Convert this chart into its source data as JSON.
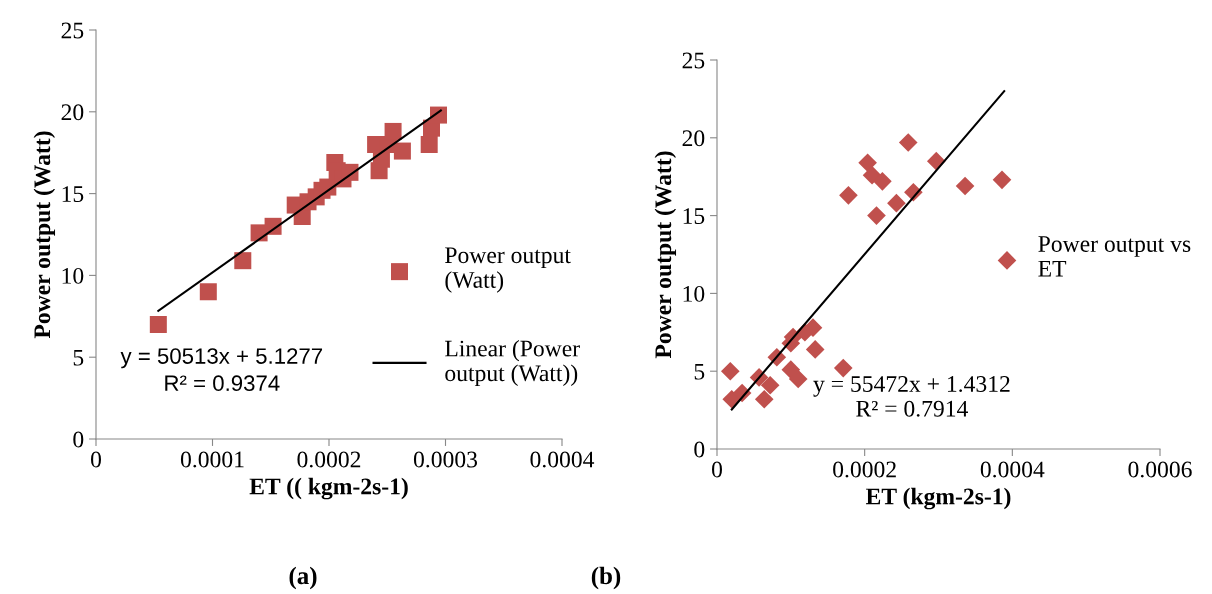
{
  "chart_data": [
    {
      "type": "scatter",
      "xlabel": "ET (( kgm-2s-1)",
      "ylabel": "Power output (Watt)",
      "xlim": [
        0,
        0.0004
      ],
      "ylim": [
        0,
        25
      ],
      "xticks": [
        0,
        0.0001,
        0.0002,
        0.0003,
        0.0004
      ],
      "yticks": [
        0,
        5,
        10,
        15,
        20,
        25
      ],
      "grid": false,
      "legend": "right",
      "annotations": [
        "y = 50513x + 5.1277\nR² = 0.9374",
        "(a)"
      ],
      "series": [
        {
          "name": "Power output (Watt)",
          "color": "#c0504d",
          "marker": "square",
          "x": [
            5.35e-05,
            9.64e-05,
            0.000126,
            0.00014,
            0.000152,
            0.000171,
            0.000177,
            0.000182,
            0.000189,
            0.000194,
            0.000199,
            0.000205,
            0.000207,
            0.000212,
            0.000218,
            0.00024,
            0.000243,
            0.000245,
            0.000251,
            0.000255,
            0.000263,
            0.000286,
            0.000288,
            0.000294
          ],
          "values": [
            7.0,
            9.0,
            10.9,
            12.6,
            13.0,
            14.3,
            13.6,
            14.5,
            14.8,
            15.2,
            15.4,
            16.9,
            16.4,
            15.9,
            16.3,
            18.0,
            16.4,
            17.1,
            18.0,
            18.8,
            17.6,
            18.0,
            19.0,
            19.8
          ]
        },
        {
          "type": "line",
          "name": "Linear (Power output (Watt))",
          "color": "#000000",
          "x": [
            5.35e-05,
            0.000296
          ],
          "values": [
            7.83,
            20.08
          ]
        }
      ]
    },
    {
      "type": "scatter",
      "xlabel": "ET (kgm-2s-1)",
      "ylabel": "Power output (Watt)",
      "xlim": [
        0,
        0.0006
      ],
      "ylim": [
        0,
        25
      ],
      "xticks": [
        0,
        0.0002,
        0.0004,
        0.0006
      ],
      "yticks": [
        0,
        5,
        10,
        15,
        20,
        25
      ],
      "grid": false,
      "legend": "right",
      "annotations": [
        "y = 55472x + 1.4312\nR² = 0.7914",
        "(b)"
      ],
      "series": [
        {
          "name": "Power output vs ET",
          "color": "#c0504d",
          "marker": "diamond",
          "x": [
            1.8e-05,
            2e-05,
            3.4e-05,
            5.7e-05,
            6.4e-05,
            7.2e-05,
            8.1e-05,
            0.0001,
            0.0001,
            0.00011,
            0.000103,
            0.000119,
            0.00013,
            0.000133,
            0.000171,
            0.000178,
            0.000204,
            0.00021,
            0.000224,
            0.000216,
            0.000243,
            0.000259,
            0.000266,
            0.000297,
            0.000336,
            0.000386
          ],
          "values": [
            5.0,
            3.2,
            3.6,
            4.6,
            3.2,
            4.1,
            5.9,
            5.1,
            6.8,
            4.5,
            7.2,
            7.5,
            7.8,
            6.4,
            5.2,
            16.3,
            18.4,
            17.6,
            17.2,
            15.0,
            15.8,
            19.7,
            16.5,
            18.5,
            16.9,
            17.3
          ]
        },
        {
          "type": "line",
          "color": "#000000",
          "x": [
            2e-05,
            0.000389
          ],
          "values": [
            2.54,
            23.0
          ]
        }
      ]
    }
  ]
}
